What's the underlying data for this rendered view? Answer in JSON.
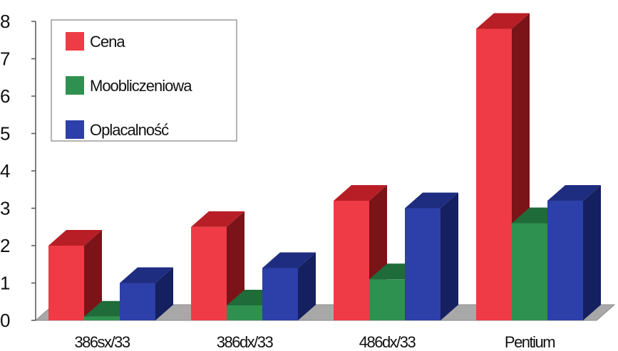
{
  "chart_data": {
    "type": "bar",
    "style": "3d-column",
    "categories": [
      "386sx/33",
      "386dx/33",
      "486dx/33",
      "Pentium"
    ],
    "series": [
      {
        "name": "Cena",
        "values": [
          2.0,
          2.5,
          3.2,
          7.8
        ],
        "color": "#ef3b46",
        "top": "#b81e26",
        "side": "#7a1418"
      },
      {
        "name": "Moobliczeniowa",
        "values": [
          0.1,
          0.4,
          1.1,
          2.6
        ],
        "color": "#2f9150",
        "top": "#1f6b39",
        "side": "#164d29"
      },
      {
        "name": "Oplacalność",
        "values": [
          1.0,
          1.4,
          3.0,
          3.2
        ],
        "color": "#2d3fa8",
        "top": "#1f2d80",
        "side": "#152060"
      }
    ],
    "ylim": [
      0,
      8
    ],
    "yticks": [
      "0",
      "1",
      "2",
      "3",
      "4",
      "5",
      "6",
      "7",
      "8"
    ],
    "legend": "top-left",
    "grid": false,
    "floor_color": "#a8a8a8"
  }
}
